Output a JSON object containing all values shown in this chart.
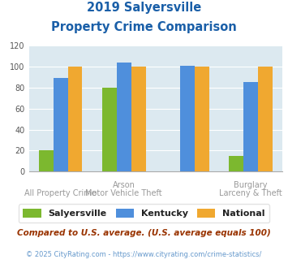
{
  "title_line1": "2019 Salyersville",
  "title_line2": "Property Crime Comparison",
  "salyersville": [
    20,
    80,
    0,
    15
  ],
  "kentucky": [
    89,
    104,
    101,
    85
  ],
  "national": [
    100,
    100,
    100,
    100
  ],
  "color_salyersville": "#7cb82f",
  "color_kentucky": "#4f8fdc",
  "color_national": "#f0a830",
  "ylim": [
    0,
    120
  ],
  "yticks": [
    0,
    20,
    40,
    60,
    80,
    100,
    120
  ],
  "bg_color": "#dce9f0",
  "legend_labels": [
    "Salyersville",
    "Kentucky",
    "National"
  ],
  "top_labels": [
    "",
    "Arson",
    "",
    "Burglary"
  ],
  "bottom_labels": [
    "All Property Crime",
    "Motor Vehicle Theft",
    "",
    "Larceny & Theft"
  ],
  "footnote1": "Compared to U.S. average. (U.S. average equals 100)",
  "footnote2": "© 2025 CityRating.com - https://www.cityrating.com/crime-statistics/",
  "title_color": "#1a5fa8",
  "xlabel_color": "#999999",
  "footnote1_color": "#993300",
  "footnote2_color": "#6699cc"
}
